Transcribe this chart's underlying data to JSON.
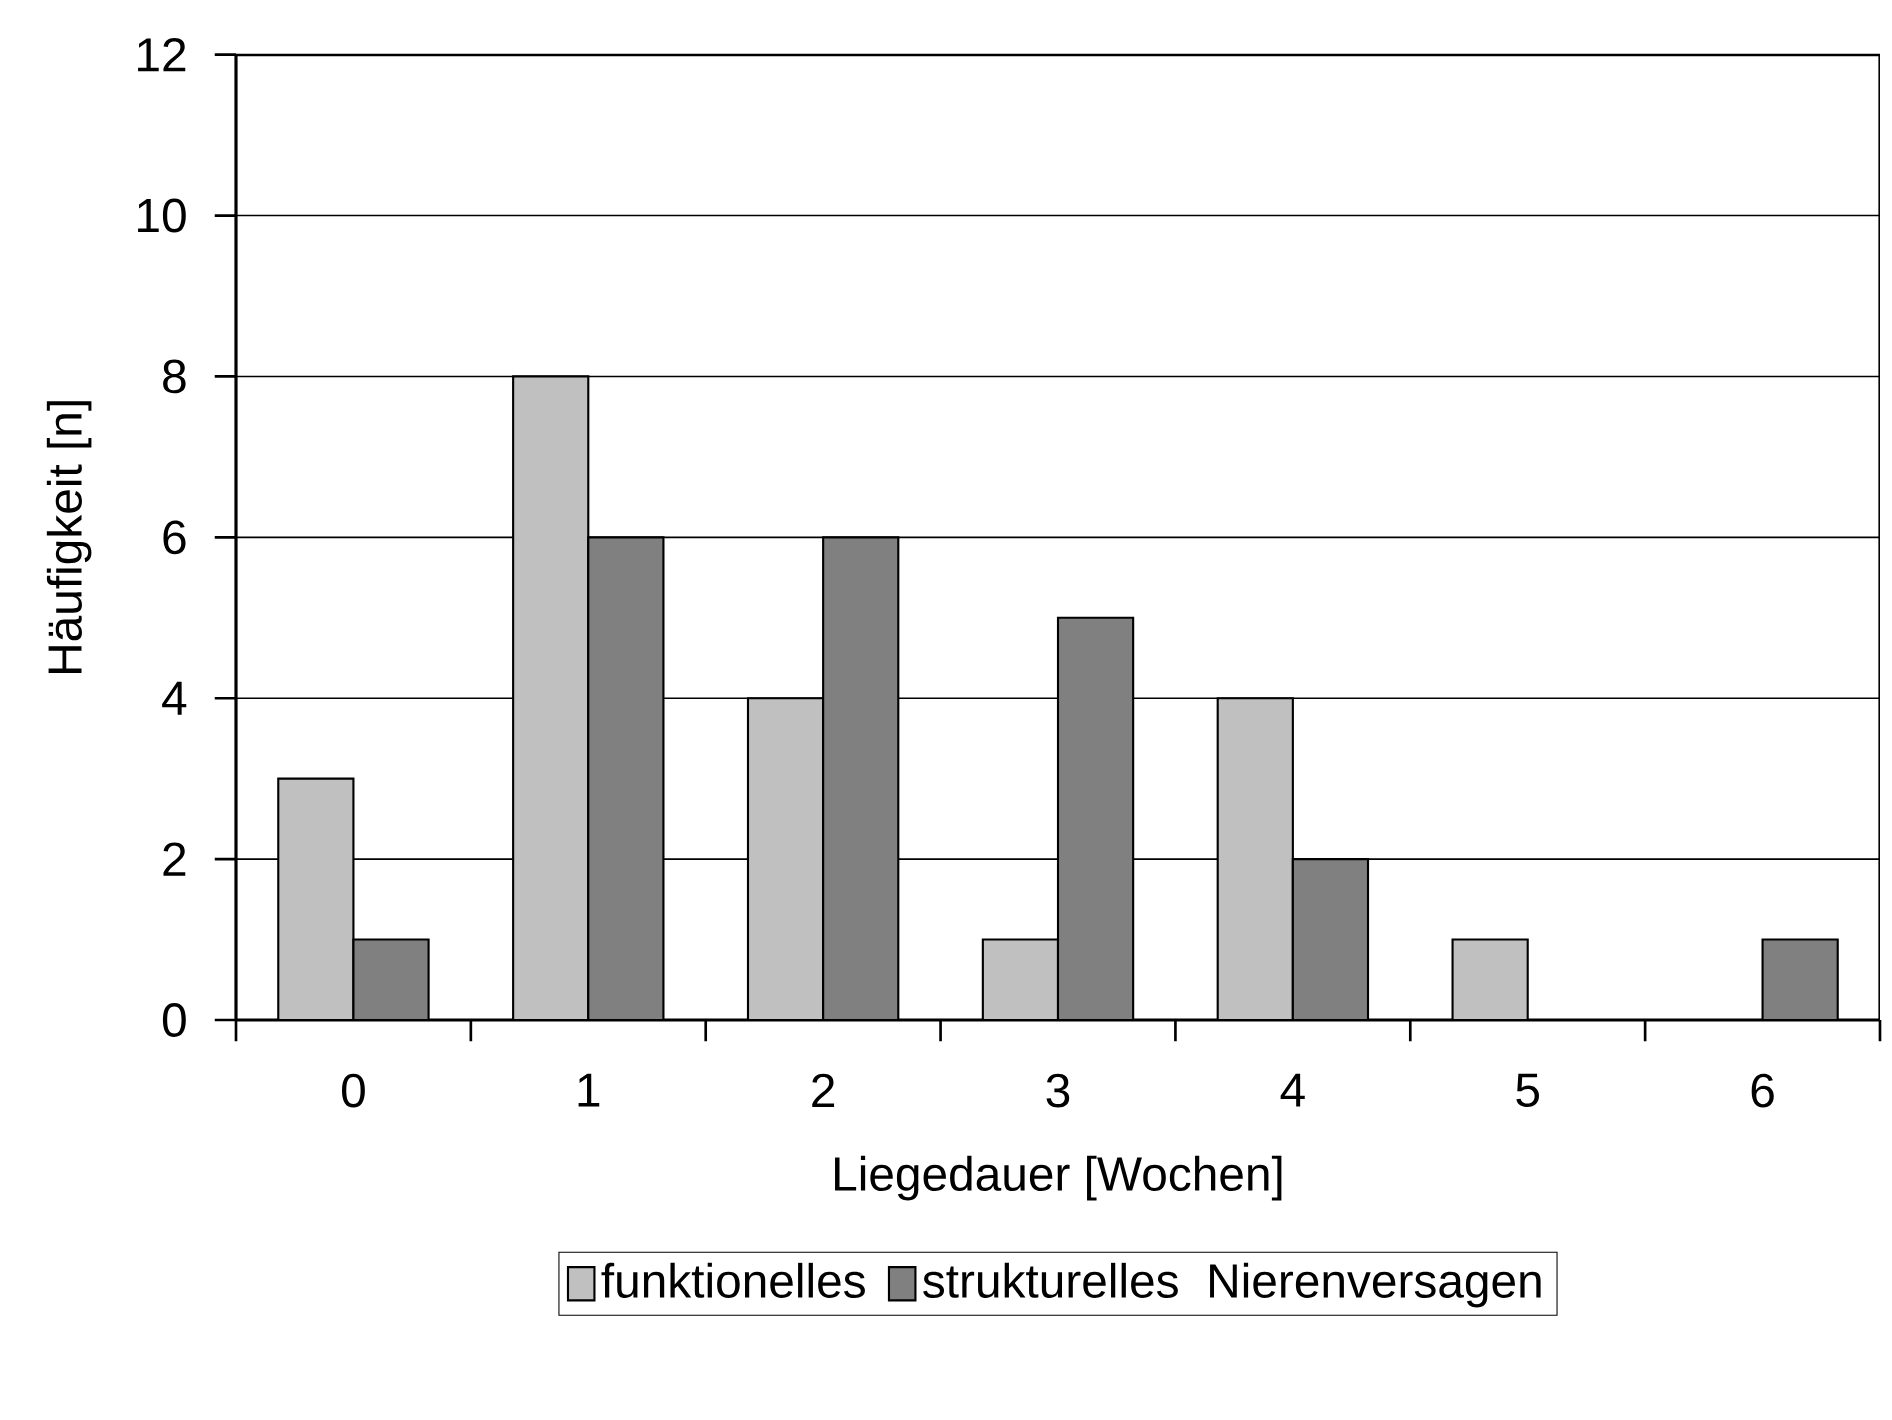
{
  "chart_data": {
    "type": "bar",
    "xlabel": "Liegedauer [Wochen]",
    "ylabel": "Häufigkeit [n]",
    "categories": [
      "0",
      "1",
      "2",
      "3",
      "4",
      "5",
      "6"
    ],
    "series": [
      {
        "name": "funktionelles",
        "color": "#c0c0c0",
        "values": [
          3,
          8,
          4,
          1,
          4,
          1,
          0
        ]
      },
      {
        "name": "strukturelles",
        "color": "#808080",
        "values": [
          1,
          6,
          6,
          5,
          2,
          0,
          1
        ]
      }
    ],
    "legend_title": "Nierenversagen",
    "ylim": [
      0,
      12
    ],
    "yticks": [
      0,
      2,
      4,
      6,
      8,
      10,
      12
    ],
    "grid": "y",
    "legend": "bottom"
  }
}
